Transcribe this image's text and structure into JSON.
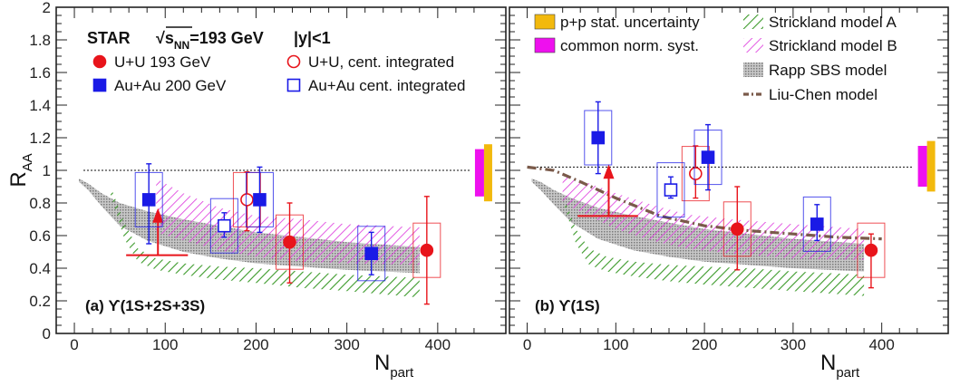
{
  "chart_data": [
    {
      "type": "scatter",
      "panel_label": "(a) ϒ(1S+2S+3S)",
      "title": "STAR",
      "energy": "√s",
      "energy_sub": "NN",
      "energy_value": "=193 GeV",
      "rapidity": "|y|<1",
      "xlabel": "N",
      "xlabel_sub": "part",
      "ylabel": "R",
      "ylabel_sub": "AA",
      "xlim": [
        -20,
        475
      ],
      "ylim": [
        0,
        2
      ],
      "yticks": [
        "0",
        "0.2",
        "0.4",
        "0.6",
        "0.8",
        "1",
        "1.2",
        "1.4",
        "1.6",
        "1.8",
        "2"
      ],
      "xticks": [
        "0",
        "100",
        "200",
        "300",
        "400"
      ],
      "reference_line": 1.0,
      "legend": [
        {
          "label": "U+U 193 GeV",
          "marker": "filled-circle",
          "color": "#e8141b"
        },
        {
          "label": "U+U, cent. integrated",
          "marker": "open-circle",
          "color": "#e8141b"
        },
        {
          "label": "Au+Au 200 GeV",
          "marker": "filled-square",
          "color": "#1a1ae6"
        },
        {
          "label": "Au+Au cent. integrated",
          "marker": "open-square",
          "color": "#1a1ae6"
        }
      ],
      "series": [
        {
          "name": "U+U 193 GeV",
          "points": [
            {
              "x": 237,
              "y": 0.56,
              "err_lo": 0.25,
              "err_hi": 0.24
            },
            {
              "x": 388,
              "y": 0.51,
              "err_lo": 0.33,
              "err_hi": 0.33
            }
          ]
        },
        {
          "name": "U+U, cent. integrated",
          "points": [
            {
              "x": 190,
              "y": 0.82,
              "err_lo": 0.19,
              "err_hi": 0.17
            }
          ]
        },
        {
          "name": "Au+Au 200 GeV",
          "points": [
            {
              "x": 82,
              "y": 0.82,
              "err_lo": 0.27,
              "err_hi": 0.22
            },
            {
              "x": 204,
              "y": 0.82,
              "err_lo": 0.2,
              "err_hi": 0.2
            },
            {
              "x": 327,
              "y": 0.49,
              "err_lo": 0.13,
              "err_hi": 0.13
            }
          ]
        },
        {
          "name": "Au+Au cent. integrated",
          "points": [
            {
              "x": 165,
              "y": 0.66,
              "err_lo": 0.07,
              "err_hi": 0.08
            }
          ]
        }
      ],
      "upper_limit": {
        "x": 92,
        "y_from": 0.48,
        "y_to": 0.69,
        "x_from": 57,
        "x_to": 125
      },
      "norm_boxes": {
        "x": 448,
        "y_lo": 0.84,
        "y_hi": 1.13
      },
      "models": {
        "strickland_A": {
          "x": [
            40,
            55,
            70,
            90,
            120,
            160,
            200,
            250,
            300,
            380
          ],
          "upper": [
            0.9,
            0.68,
            0.52,
            0.46,
            0.43,
            0.41,
            0.4,
            0.38,
            0.36,
            0.34
          ],
          "lower": [
            0.85,
            0.58,
            0.44,
            0.39,
            0.36,
            0.33,
            0.31,
            0.28,
            0.26,
            0.22
          ]
        },
        "strickland_B": {
          "x": [
            90,
            120,
            160,
            200,
            250,
            300,
            380
          ],
          "upper": [
            0.95,
            0.86,
            0.77,
            0.72,
            0.7,
            0.67,
            0.65
          ],
          "lower": [
            0.62,
            0.57,
            0.51,
            0.47,
            0.44,
            0.43,
            0.42
          ]
        },
        "rapp_sbs": {
          "x": [
            5,
            15,
            30,
            50,
            80,
            120,
            160,
            200,
            250,
            300,
            380
          ],
          "upper": [
            0.95,
            0.92,
            0.86,
            0.8,
            0.75,
            0.7,
            0.66,
            0.62,
            0.59,
            0.56,
            0.53
          ],
          "lower": [
            0.93,
            0.88,
            0.78,
            0.66,
            0.57,
            0.5,
            0.46,
            0.43,
            0.41,
            0.39,
            0.37
          ]
        }
      }
    },
    {
      "type": "scatter",
      "panel_label": "(b) ϒ(1S)",
      "xlabel": "N",
      "xlabel_sub": "part",
      "xlim": [
        -20,
        475
      ],
      "ylim": [
        0,
        2
      ],
      "xticks": [
        "0",
        "100",
        "200",
        "300",
        "400"
      ],
      "reference_line": 1.02,
      "legend": [
        {
          "label": "p+p stat. uncertainty",
          "marker": "box",
          "color": "#f2b90d"
        },
        {
          "label": "common norm. syst.",
          "marker": "box",
          "color": "#ee10ee"
        },
        {
          "label": "Strickland model A",
          "marker": "hatch-green",
          "color": "#3c9a2a"
        },
        {
          "label": "Strickland model B",
          "marker": "hatch-magenta",
          "color": "#e04ae0"
        },
        {
          "label": "Rapp SBS model",
          "marker": "grey-box",
          "color": "#9a9a9a"
        },
        {
          "label": "Liu-Chen model",
          "marker": "dash-dot",
          "color": "#7a5a4a"
        }
      ],
      "series": [
        {
          "name": "U+U 193 GeV",
          "points": [
            {
              "x": 237,
              "y": 0.64,
              "err_lo": 0.25,
              "err_hi": 0.26
            },
            {
              "x": 388,
              "y": 0.51,
              "err_lo": 0.23,
              "err_hi": 0.1
            }
          ]
        },
        {
          "name": "U+U, cent. integrated",
          "points": [
            {
              "x": 190,
              "y": 0.98,
              "err_lo": 0.15,
              "err_hi": 0.17
            }
          ]
        },
        {
          "name": "Au+Au 200 GeV",
          "points": [
            {
              "x": 80,
              "y": 1.2,
              "err_lo": 0.22,
              "err_hi": 0.22
            },
            {
              "x": 204,
              "y": 1.08,
              "err_lo": 0.2,
              "err_hi": 0.2
            },
            {
              "x": 327,
              "y": 0.67,
              "err_lo": 0.1,
              "err_hi": 0.12
            }
          ]
        },
        {
          "name": "Au+Au cent. integrated",
          "points": [
            {
              "x": 162,
              "y": 0.88,
              "err_lo": 0.05,
              "err_hi": 0.08
            }
          ]
        }
      ],
      "upper_limit": {
        "x": 92,
        "y_from": 0.72,
        "y_to": 0.96,
        "x_from": 57,
        "x_to": 125
      },
      "norm_boxes": {
        "x": 448,
        "y_lo": 0.9,
        "y_hi": 1.15
      },
      "liu_chen": {
        "x": [
          0,
          30,
          60,
          100,
          150,
          200,
          250,
          300,
          350,
          400
        ],
        "y": [
          1.02,
          1.0,
          0.93,
          0.83,
          0.72,
          0.66,
          0.63,
          0.61,
          0.59,
          0.58
        ]
      },
      "models": {
        "strickland_A": {
          "x": [
            40,
            55,
            70,
            90,
            120,
            160,
            200,
            250,
            300,
            380
          ],
          "upper": [
            0.86,
            0.64,
            0.52,
            0.47,
            0.44,
            0.42,
            0.41,
            0.4,
            0.38,
            0.36
          ],
          "lower": [
            0.82,
            0.55,
            0.42,
            0.38,
            0.35,
            0.32,
            0.3,
            0.28,
            0.26,
            0.23
          ]
        },
        "strickland_B": {
          "x": [
            40,
            70,
            100,
            140,
            180,
            230,
            300,
            380
          ],
          "upper": [
            0.98,
            0.92,
            0.86,
            0.79,
            0.73,
            0.7,
            0.67,
            0.64
          ],
          "lower": [
            0.8,
            0.72,
            0.64,
            0.57,
            0.52,
            0.49,
            0.46,
            0.45
          ]
        },
        "rapp_sbs": {
          "x": [
            5,
            15,
            30,
            50,
            80,
            120,
            160,
            200,
            250,
            300,
            380
          ],
          "upper": [
            0.95,
            0.93,
            0.88,
            0.83,
            0.77,
            0.72,
            0.68,
            0.64,
            0.61,
            0.58,
            0.55
          ],
          "lower": [
            0.93,
            0.88,
            0.79,
            0.68,
            0.58,
            0.51,
            0.47,
            0.44,
            0.42,
            0.4,
            0.38
          ]
        }
      }
    }
  ]
}
